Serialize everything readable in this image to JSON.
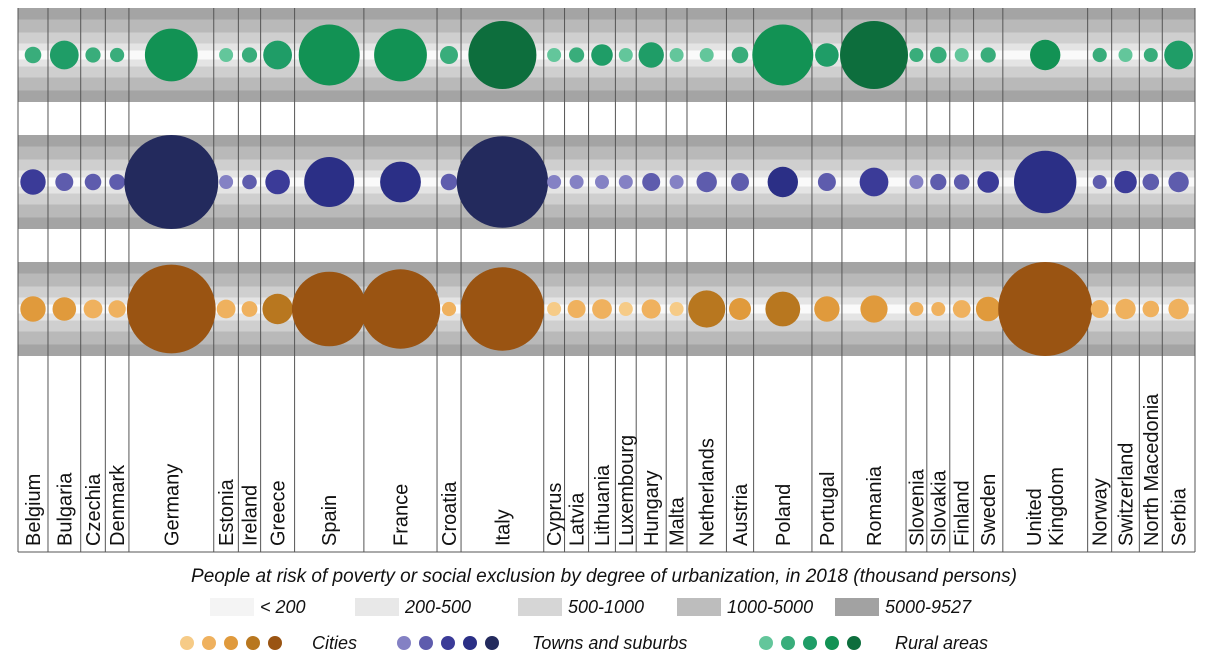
{
  "chart_data": {
    "type": "bubble",
    "title": "People at risk of poverty or social exclusion by degree of urbanization, in 2018 (thousand persons)",
    "unit": "thousand persons",
    "categories": [
      "Belgium",
      "Bulgaria",
      "Czechia",
      "Denmark",
      "Germany",
      "Estonia",
      "Ireland",
      "Greece",
      "Spain",
      "France",
      "Croatia",
      "Italy",
      "Cyprus",
      "Latvia",
      "Lithuania",
      "Luxembourg",
      "Hungary",
      "Malta",
      "Netherlands",
      "Austria",
      "Poland",
      "Portugal",
      "Romania",
      "Slovenia",
      "Slovakia",
      "Finland",
      "Sweden",
      "United Kingdom",
      "Norway",
      "Switzerland",
      "North Macedonia",
      "Serbia"
    ],
    "series": [
      {
        "name": "Rural areas",
        "color": "#129254",
        "values": [
          300,
          900,
          250,
          220,
          3000,
          100,
          250,
          900,
          4000,
          3000,
          350,
          5000,
          120,
          250,
          500,
          130,
          700,
          2,
          180,
          300,
          4000,
          600,
          5000,
          200,
          300,
          150,
          250,
          1000,
          220,
          180,
          200,
          900
        ]
      },
      {
        "name": "Towns and suburbs",
        "color": "#2b2f86",
        "values": [
          700,
          350,
          300,
          270,
          9527,
          130,
          230,
          650,
          2700,
          1800,
          300,
          9000,
          120,
          130,
          150,
          130,
          350,
          30,
          450,
          350,
          1000,
          350,
          900,
          150,
          280,
          260,
          500,
          4200,
          210,
          550,
          300,
          450
        ]
      },
      {
        "name": "Cities",
        "color": "#9a5412",
        "values": [
          700,
          600,
          380,
          330,
          8500,
          380,
          270,
          1000,
          6000,
          6800,
          220,
          7500,
          120,
          350,
          420,
          160,
          400,
          140,
          1500,
          520,
          1300,
          700,
          800,
          200,
          200,
          340,
          650,
          9527,
          350,
          450,
          300,
          450
        ]
      }
    ],
    "size_legend": {
      "title": "",
      "bins": [
        "< 200",
        "200-500",
        "500-1000",
        "1000-5000",
        "5000-9527"
      ],
      "fill_colors": [
        "#f4f4f4",
        "#e8e8e8",
        "#d6d6d6",
        "#bdbdbd",
        "#a2a2a2"
      ]
    },
    "color_legend": [
      {
        "label": "Cities",
        "colors": [
          "#f6cb87",
          "#efb15e",
          "#e09a3c",
          "#b8771f",
          "#9a5412"
        ]
      },
      {
        "label": "Towns and suburbs",
        "colors": [
          "#8481c4",
          "#5e5cad",
          "#3b3b98",
          "#2b2f86",
          "#232a5d"
        ]
      },
      {
        "label": "Rural areas",
        "colors": [
          "#63c69b",
          "#39ad7b",
          "#1f9d67",
          "#129254",
          "#0d6e3d"
        ]
      }
    ]
  }
}
